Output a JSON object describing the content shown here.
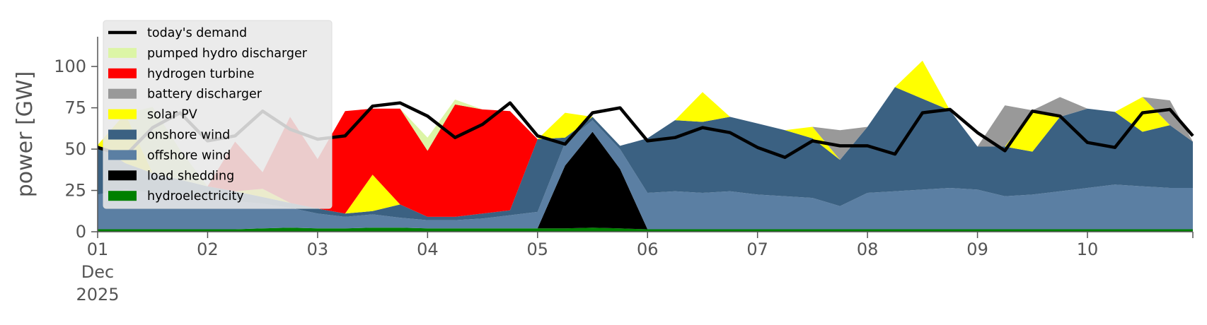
{
  "chart_data": {
    "type": "area",
    "ylabel": "power [GW]",
    "ylim": [
      0,
      118
    ],
    "x_start": "2025-12-01T00:00",
    "x_end": "2025-12-10T23:00",
    "x_ticks": [
      {
        "x": "2025-12-01",
        "lines": [
          "01",
          "Dec",
          "2025"
        ]
      },
      {
        "x": "2025-12-02",
        "lines": [
          "02"
        ]
      },
      {
        "x": "2025-12-03",
        "lines": [
          "03"
        ]
      },
      {
        "x": "2025-12-04",
        "lines": [
          "04"
        ]
      },
      {
        "x": "2025-12-05",
        "lines": [
          "05"
        ]
      },
      {
        "x": "2025-12-06",
        "lines": [
          "06"
        ]
      },
      {
        "x": "2025-12-07",
        "lines": [
          "07"
        ]
      },
      {
        "x": "2025-12-08",
        "lines": [
          "08"
        ]
      },
      {
        "x": "2025-12-09",
        "lines": [
          "09"
        ]
      },
      {
        "x": "2025-12-10",
        "lines": [
          "10"
        ]
      }
    ],
    "y_ticks": [
      0,
      25,
      50,
      75,
      100
    ],
    "legend_position": "top-left",
    "x": [
      "2025-12-01T00:00",
      "2025-12-01T06:00",
      "2025-12-01T12:00",
      "2025-12-01T18:00",
      "2025-12-02T00:00",
      "2025-12-02T06:00",
      "2025-12-02T12:00",
      "2025-12-02T18:00",
      "2025-12-03T00:00",
      "2025-12-03T06:00",
      "2025-12-03T12:00",
      "2025-12-03T18:00",
      "2025-12-04T00:00",
      "2025-12-04T06:00",
      "2025-12-04T12:00",
      "2025-12-04T18:00",
      "2025-12-05T00:00",
      "2025-12-05T06:00",
      "2025-12-05T12:00",
      "2025-12-05T18:00",
      "2025-12-06T00:00",
      "2025-12-06T06:00",
      "2025-12-06T12:00",
      "2025-12-06T18:00",
      "2025-12-07T00:00",
      "2025-12-07T06:00",
      "2025-12-07T12:00",
      "2025-12-07T18:00",
      "2025-12-08T00:00",
      "2025-12-08T06:00",
      "2025-12-08T12:00",
      "2025-12-08T18:00",
      "2025-12-09T00:00",
      "2025-12-09T06:00",
      "2025-12-09T12:00",
      "2025-12-09T18:00",
      "2025-12-10T00:00",
      "2025-12-10T06:00",
      "2025-12-10T12:00",
      "2025-12-10T18:00",
      "2025-12-10T23:00"
    ],
    "stack_series": [
      {
        "name": "hydroelectricity",
        "color": "#008000",
        "values": [
          1.5,
          1.5,
          1.5,
          1.5,
          1.5,
          1.5,
          2,
          2.5,
          2,
          2,
          2.5,
          2.5,
          2,
          2,
          2,
          2,
          2,
          2,
          2.5,
          2,
          1.5,
          1.5,
          1.5,
          1.5,
          1.5,
          1.5,
          1.5,
          1.5,
          1.5,
          1.5,
          1.5,
          1.5,
          1.5,
          1.5,
          1.5,
          1.5,
          1.5,
          1.5,
          1.5,
          1.5,
          1.5
        ]
      },
      {
        "name": "load shedding",
        "color": "#000000",
        "values": [
          0,
          0,
          0,
          0,
          0,
          0,
          0,
          0,
          0,
          0,
          0,
          0,
          0,
          0,
          0,
          0,
          0,
          38,
          58,
          36,
          0,
          0,
          0,
          0,
          0,
          0,
          0,
          0,
          0,
          0,
          0,
          0,
          0,
          0,
          0,
          0,
          0,
          0,
          0,
          0,
          0
        ]
      },
      {
        "name": "offshore wind",
        "color": "#5b7fa3",
        "values": [
          21,
          24,
          22,
          21,
          19,
          17,
          15,
          12,
          9,
          7,
          8,
          6,
          5,
          5,
          6,
          8,
          10,
          14,
          7,
          12,
          22,
          23,
          22,
          23,
          21,
          20,
          19,
          14,
          22,
          23,
          24,
          25,
          24,
          20,
          21,
          23,
          25,
          27,
          26,
          25,
          25
        ]
      },
      {
        "name": "onshore wind",
        "color": "#3b6182",
        "values": [
          30,
          16,
          12,
          9,
          7,
          6,
          4,
          3,
          3,
          2,
          2,
          8,
          2,
          2,
          3,
          3,
          44,
          3,
          2,
          2,
          33,
          43,
          43,
          45,
          43,
          40,
          36,
          28,
          40,
          63,
          55,
          47,
          26,
          30,
          26,
          45,
          48,
          44,
          33,
          38,
          28
        ]
      },
      {
        "name": "solar PV",
        "color": "#ffff00",
        "values": [
          0,
          30,
          0,
          0,
          0,
          0,
          5,
          0,
          0,
          0,
          22,
          0,
          0,
          0,
          0,
          0,
          0,
          15,
          0,
          0,
          0,
          0,
          18,
          0,
          0,
          0,
          7,
          0,
          0,
          0,
          23,
          0,
          0,
          0,
          25,
          0,
          0,
          0,
          21,
          0,
          0
        ]
      },
      {
        "name": "battery discharger",
        "color": "#999999",
        "values": [
          0,
          0,
          0,
          0,
          0,
          0,
          0,
          0,
          0,
          0,
          0,
          0,
          0,
          0,
          0,
          0,
          0,
          0,
          0,
          0,
          0,
          0,
          0,
          0,
          0,
          0,
          0,
          18,
          0,
          0,
          0,
          0,
          0,
          25,
          0,
          12,
          0,
          0,
          0,
          15,
          0
        ]
      },
      {
        "name": "hydrogen turbine",
        "color": "#ff0000",
        "values": [
          0,
          0,
          0,
          0,
          0,
          30,
          10,
          52,
          30,
          62,
          40,
          58,
          40,
          68,
          63,
          60,
          0,
          0,
          0,
          0,
          0,
          0,
          0,
          0,
          0,
          0,
          0,
          0,
          0,
          0,
          0,
          0,
          0,
          0,
          0,
          0,
          0,
          0,
          0,
          0,
          0
        ]
      },
      {
        "name": "pumped hydro discharger",
        "color": "#dcf5a6",
        "values": [
          0,
          0,
          40,
          18,
          0,
          0,
          0,
          0,
          0,
          0,
          0,
          0,
          8,
          3,
          0,
          0,
          0,
          0,
          0,
          0,
          0,
          0,
          0,
          0,
          0,
          0,
          0,
          0,
          0,
          0,
          0,
          0,
          0,
          0,
          0,
          0,
          0,
          0,
          0,
          0,
          0
        ]
      }
    ],
    "demand_series": {
      "name": "today's demand",
      "color": "#000000",
      "values": [
        51,
        46,
        63,
        72,
        55,
        58,
        73,
        62,
        56,
        58,
        76,
        78,
        70,
        57,
        65,
        78,
        58,
        53,
        72,
        75,
        55,
        57,
        63,
        60,
        51,
        45,
        55,
        52,
        52,
        47,
        72,
        74,
        60,
        49,
        73,
        70,
        54,
        51,
        72,
        74,
        58
      ]
    },
    "legend": [
      {
        "label": "today's demand",
        "kind": "line",
        "color": "#000000"
      },
      {
        "label": "pumped hydro discharger",
        "kind": "patch",
        "color": "#dcf5a6"
      },
      {
        "label": "hydrogen turbine",
        "kind": "patch",
        "color": "#ff0000"
      },
      {
        "label": "battery discharger",
        "kind": "patch",
        "color": "#999999"
      },
      {
        "label": "solar PV",
        "kind": "patch",
        "color": "#ffff00"
      },
      {
        "label": "onshore wind",
        "kind": "patch",
        "color": "#3b6182"
      },
      {
        "label": "offshore wind",
        "kind": "patch",
        "color": "#5b7fa3"
      },
      {
        "label": "load shedding",
        "kind": "patch",
        "color": "#000000"
      },
      {
        "label": "hydroelectricity",
        "kind": "patch",
        "color": "#008000"
      }
    ],
    "grid": false
  }
}
